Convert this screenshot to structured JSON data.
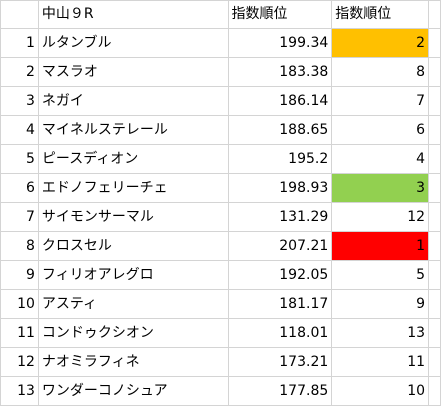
{
  "header": {
    "race": "中山９R",
    "score_header": "指数順位",
    "rank_header": "指数順位"
  },
  "highlight_colors": {
    "orange": "#FFC000",
    "green": "#92D050",
    "red": "#FF0000"
  },
  "rows": [
    {
      "no": "1",
      "name": "ルタンブル",
      "score": "199.34",
      "rank": "2",
      "highlight": "orange"
    },
    {
      "no": "2",
      "name": "マスラオ",
      "score": "183.38",
      "rank": "8",
      "highlight": ""
    },
    {
      "no": "3",
      "name": "ネガイ",
      "score": "186.14",
      "rank": "7",
      "highlight": ""
    },
    {
      "no": "4",
      "name": "マイネルステレール",
      "score": "188.65",
      "rank": "6",
      "highlight": ""
    },
    {
      "no": "5",
      "name": "ピースディオン",
      "score": "195.2",
      "rank": "4",
      "highlight": ""
    },
    {
      "no": "6",
      "name": "エドノフェリーチェ",
      "score": "198.93",
      "rank": "3",
      "highlight": "green"
    },
    {
      "no": "7",
      "name": "サイモンサーマル",
      "score": "131.29",
      "rank": "12",
      "highlight": ""
    },
    {
      "no": "8",
      "name": "クロスセル",
      "score": "207.21",
      "rank": "1",
      "highlight": "red"
    },
    {
      "no": "9",
      "name": "フィリオアレグロ",
      "score": "192.05",
      "rank": "5",
      "highlight": ""
    },
    {
      "no": "10",
      "name": "アスティ",
      "score": "181.17",
      "rank": "9",
      "highlight": ""
    },
    {
      "no": "11",
      "name": "コンドゥクシオン",
      "score": "118.01",
      "rank": "13",
      "highlight": ""
    },
    {
      "no": "12",
      "name": "ナオミラフィネ",
      "score": "173.21",
      "rank": "11",
      "highlight": ""
    },
    {
      "no": "13",
      "name": "ワンダーコノシュア",
      "score": "177.85",
      "rank": "10",
      "highlight": ""
    }
  ]
}
